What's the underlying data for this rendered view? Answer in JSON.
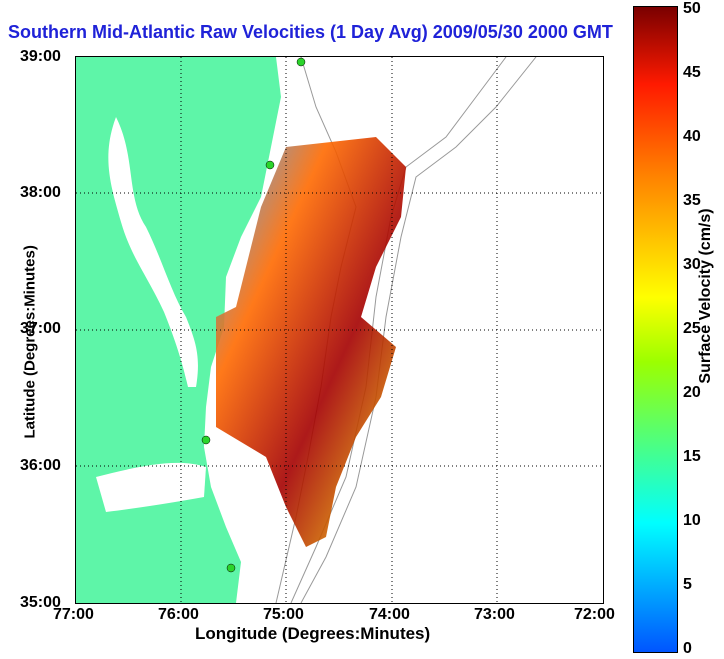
{
  "title": "Southern Mid-Atlantic Raw Velocities (1 Day Avg) 2009/05/30 2000 GMT",
  "axes": {
    "x_label": "Longitude (Degrees:Minutes)",
    "y_label": "Latitude (Degrees:Minutes)",
    "x_ticks": [
      "77:00",
      "76:00",
      "75:00",
      "74:00",
      "73:00",
      "72:00"
    ],
    "y_ticks": [
      "39:00",
      "38:00",
      "37:00",
      "36:00",
      "35:00"
    ]
  },
  "colorbar": {
    "label": "Surface Velocity (cm/s)",
    "ticks": [
      "50",
      "45",
      "40",
      "35",
      "30",
      "25",
      "20",
      "15",
      "10",
      "5",
      "0"
    ],
    "range": [
      0,
      50
    ]
  },
  "colors": {
    "land": "#5ef5a8",
    "water": "#ffffff",
    "title": "#1f22d8",
    "station": "#2bd42b"
  }
}
